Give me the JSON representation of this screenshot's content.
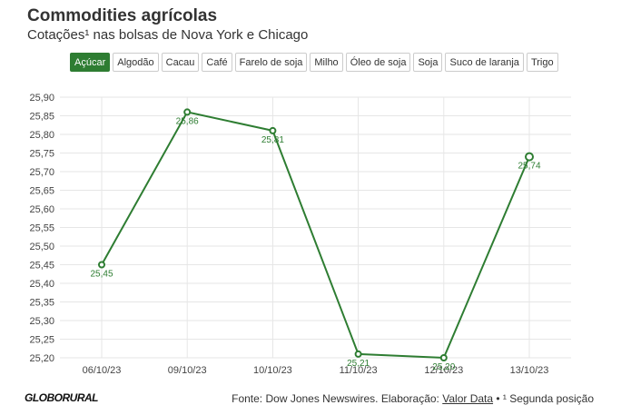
{
  "header": {
    "title": "Commodities agrícolas",
    "subtitle": "Cotações¹ nas bolsas de Nova York e Chicago"
  },
  "tabs": [
    {
      "label": "Açúcar",
      "active": true
    },
    {
      "label": "Algodão",
      "active": false
    },
    {
      "label": "Cacau",
      "active": false
    },
    {
      "label": "Café",
      "active": false
    },
    {
      "label": "Farelo de soja",
      "active": false
    },
    {
      "label": "Milho",
      "active": false
    },
    {
      "label": "Óleo de soja",
      "active": false
    },
    {
      "label": "Soja",
      "active": false
    },
    {
      "label": "Suco de laranja",
      "active": false
    },
    {
      "label": "Trigo",
      "active": false
    }
  ],
  "chart_data": {
    "type": "line",
    "x": [
      "06/10/23",
      "09/10/23",
      "10/10/23",
      "11/10/23",
      "12/10/23",
      "13/10/23"
    ],
    "series": [
      {
        "values": [
          25.45,
          25.86,
          25.81,
          25.21,
          25.2,
          25.74
        ],
        "labels": [
          "25,45",
          "25,86",
          "25,81",
          "25,21",
          "25,20",
          "25,74"
        ]
      }
    ],
    "yticks": [
      "25,20",
      "25,25",
      "25,30",
      "25,35",
      "25,40",
      "25,45",
      "25,50",
      "25,55",
      "25,60",
      "25,65",
      "25,70",
      "25,75",
      "25,80",
      "25,85",
      "25,90"
    ],
    "ylim": [
      25.2,
      25.9
    ],
    "grid": true,
    "line_color": "#2e7d32"
  },
  "footer": {
    "logo": "GLOBORURAL",
    "source_prefix": "Fonte: Dow Jones Newswires. Elaboração: ",
    "source_link": "Valor Data",
    "source_suffix": " • ¹ Segunda posição"
  }
}
